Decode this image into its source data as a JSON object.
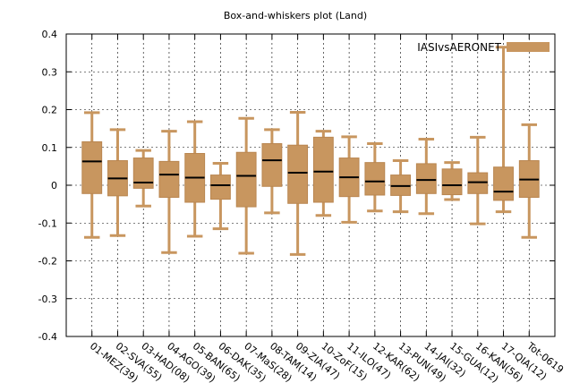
{
  "chart_data": {
    "type": "boxplot",
    "title": "Box-and-whiskers plot (Land)",
    "xlabel": "",
    "ylabel": "",
    "ylim": [
      -0.4,
      0.4
    ],
    "yticks": [
      -0.4,
      -0.3,
      -0.2,
      -0.1,
      0,
      0.1,
      0.2,
      0.3,
      0.4
    ],
    "ytick_labels": [
      "-0.4",
      "-0.3",
      "-0.2",
      "-0.1",
      "0",
      "0.1",
      "0.2",
      "0.3",
      "0.4"
    ],
    "grid": true,
    "legend": {
      "placement": "top-right",
      "entries": [
        "IASIvsAERONET"
      ]
    },
    "colors": {
      "box": "#c8965f",
      "box_stroke": "#b98650",
      "median": "#000000",
      "grid": "#000000"
    },
    "categories": [
      "01-MEZ(39)",
      "02-SVA(55)",
      "03-HAD(08)",
      "04-AGO(39)",
      "05-BAN(65)",
      "06-DAK(35)",
      "07-MaS(28)",
      "08-TAM(14)",
      "09-ZIA(47)",
      "10-ZoF(15)",
      "11-ILO(47)",
      "12-KAR(62)",
      "13-PUN(49)",
      "14-JAI(32)",
      "15-GUA(12)",
      "16-KAN(56)",
      "17-QIA(12)",
      "Tot-0619"
    ],
    "series": [
      {
        "name": "IASIvsAERONET",
        "boxes": [
          {
            "min": -0.138,
            "q1": -0.022,
            "median": 0.063,
            "q3": 0.115,
            "max": 0.192
          },
          {
            "min": -0.133,
            "q1": -0.028,
            "median": 0.018,
            "q3": 0.065,
            "max": 0.147
          },
          {
            "min": -0.055,
            "q1": -0.008,
            "median": 0.007,
            "q3": 0.072,
            "max": 0.092
          },
          {
            "min": -0.178,
            "q1": -0.032,
            "median": 0.028,
            "q3": 0.063,
            "max": 0.143
          },
          {
            "min": -0.135,
            "q1": -0.045,
            "median": 0.02,
            "q3": 0.084,
            "max": 0.168
          },
          {
            "min": -0.115,
            "q1": -0.037,
            "median": 0.0,
            "q3": 0.027,
            "max": 0.058
          },
          {
            "min": -0.18,
            "q1": -0.057,
            "median": 0.025,
            "q3": 0.087,
            "max": 0.177
          },
          {
            "min": -0.073,
            "q1": -0.003,
            "median": 0.066,
            "q3": 0.11,
            "max": 0.147
          },
          {
            "min": -0.183,
            "q1": -0.048,
            "median": 0.033,
            "q3": 0.106,
            "max": 0.193
          },
          {
            "min": -0.08,
            "q1": -0.045,
            "median": 0.036,
            "q3": 0.127,
            "max": 0.143
          },
          {
            "min": -0.098,
            "q1": -0.03,
            "median": 0.021,
            "q3": 0.072,
            "max": 0.128
          },
          {
            "min": -0.068,
            "q1": -0.026,
            "median": 0.01,
            "q3": 0.06,
            "max": 0.11
          },
          {
            "min": -0.07,
            "q1": -0.027,
            "median": -0.002,
            "q3": 0.027,
            "max": 0.065
          },
          {
            "min": -0.075,
            "q1": -0.022,
            "median": 0.014,
            "q3": 0.057,
            "max": 0.122
          },
          {
            "min": -0.038,
            "q1": -0.025,
            "median": 0.0,
            "q3": 0.043,
            "max": 0.06
          },
          {
            "min": -0.102,
            "q1": -0.022,
            "median": 0.008,
            "q3": 0.033,
            "max": 0.127
          },
          {
            "min": -0.07,
            "q1": -0.04,
            "median": -0.017,
            "q3": 0.048,
            "max": 0.365
          },
          {
            "min": -0.138,
            "q1": -0.032,
            "median": 0.015,
            "q3": 0.065,
            "max": 0.16
          }
        ]
      }
    ]
  }
}
